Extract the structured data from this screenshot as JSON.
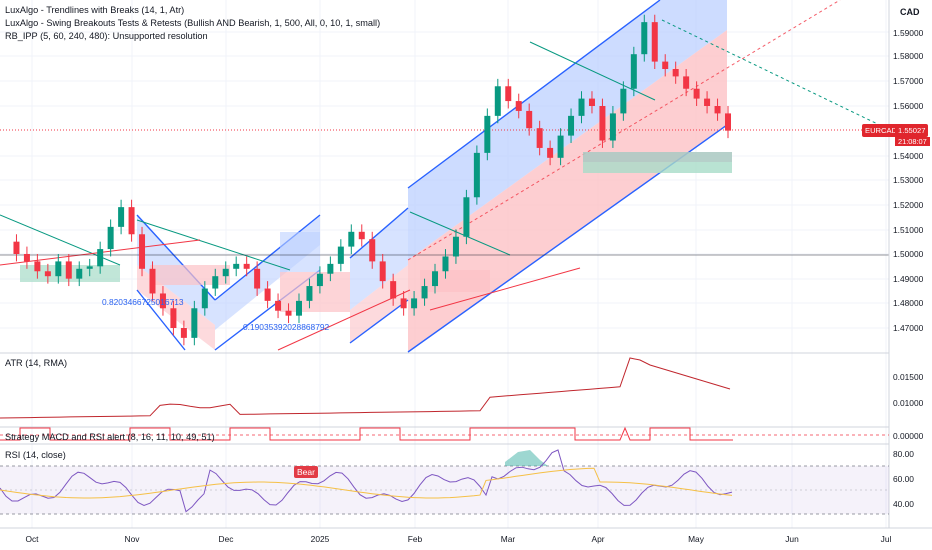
{
  "currency": "CAD",
  "legend": [
    "LuxAlgo - Trendlines with Breaks (14, 1, Atr)",
    "LuxAlgo - Swing Breakouts Tests & Retests (Bullish AND Bearish, 1, 500, All, 0, 10, 1, small)",
    "RB_IPP (5, 60, 240, 480): Unsupported resolution"
  ],
  "panes": {
    "atr_label": "ATR (14, RMA)",
    "macd_label": "Strategy MACD and RSI alert (8, 16, 11, 10, 49, 51)",
    "rsi_label": "RSI (14, close)"
  },
  "price_ticks": [
    "1.59000",
    "1.58000",
    "1.57000",
    "1.56000",
    "1.54000",
    "1.53000",
    "1.52000",
    "1.51000",
    "1.50000",
    "1.49000",
    "1.48000",
    "1.47000"
  ],
  "atr_ticks": [
    "0.01500",
    "0.01000"
  ],
  "macd_ticks": [
    "0.00000"
  ],
  "rsi_ticks": [
    "80.00",
    "60.00",
    "40.00"
  ],
  "x_labels": [
    "Oct",
    "Nov",
    "Dec",
    "2025",
    "Feb",
    "Mar",
    "Apr",
    "May",
    "Jun",
    "Jul"
  ],
  "symbol_tag": "EURCAD",
  "last_price": "1.55027",
  "countdown": "21:08:07",
  "annotations": [
    "0.8203466725016713",
    "0.19035392028868792"
  ],
  "signal_label": "Bear",
  "colors": {
    "up": "#089981",
    "down": "#f23645",
    "channel_up": "#2962ff",
    "channel_down": "#f23645"
  },
  "chart_data": {
    "type": "line",
    "x_labels": [
      "Oct",
      "Nov",
      "Dec",
      "2025",
      "Feb",
      "Mar",
      "Apr",
      "May",
      "Jun",
      "Jul"
    ],
    "price_ticks": [
      1.47,
      1.48,
      1.49,
      1.5,
      1.51,
      1.52,
      1.53,
      1.54,
      1.56,
      1.57,
      1.58,
      1.59
    ],
    "series": [
      {
        "name": "EURCAD",
        "values": [
          1.505,
          1.5,
          1.497,
          1.493,
          1.491,
          1.497,
          1.49,
          1.494,
          1.495,
          1.502,
          1.511,
          1.519,
          1.508,
          1.494,
          1.484,
          1.478,
          1.47,
          1.466,
          1.478,
          1.486,
          1.491,
          1.494,
          1.496,
          1.494,
          1.486,
          1.481,
          1.477,
          1.475,
          1.481,
          1.487,
          1.492,
          1.496,
          1.503,
          1.509,
          1.506,
          1.497,
          1.489,
          1.482,
          1.478,
          1.482,
          1.487,
          1.493,
          1.499,
          1.507,
          1.523,
          1.541,
          1.556,
          1.568,
          1.562,
          1.558,
          1.551,
          1.543,
          1.539,
          1.548,
          1.556,
          1.563,
          1.56,
          1.546,
          1.557,
          1.567,
          1.581,
          1.594,
          1.578,
          1.575,
          1.572,
          1.567,
          1.563,
          1.56,
          1.557,
          1.55
        ]
      }
    ]
  }
}
